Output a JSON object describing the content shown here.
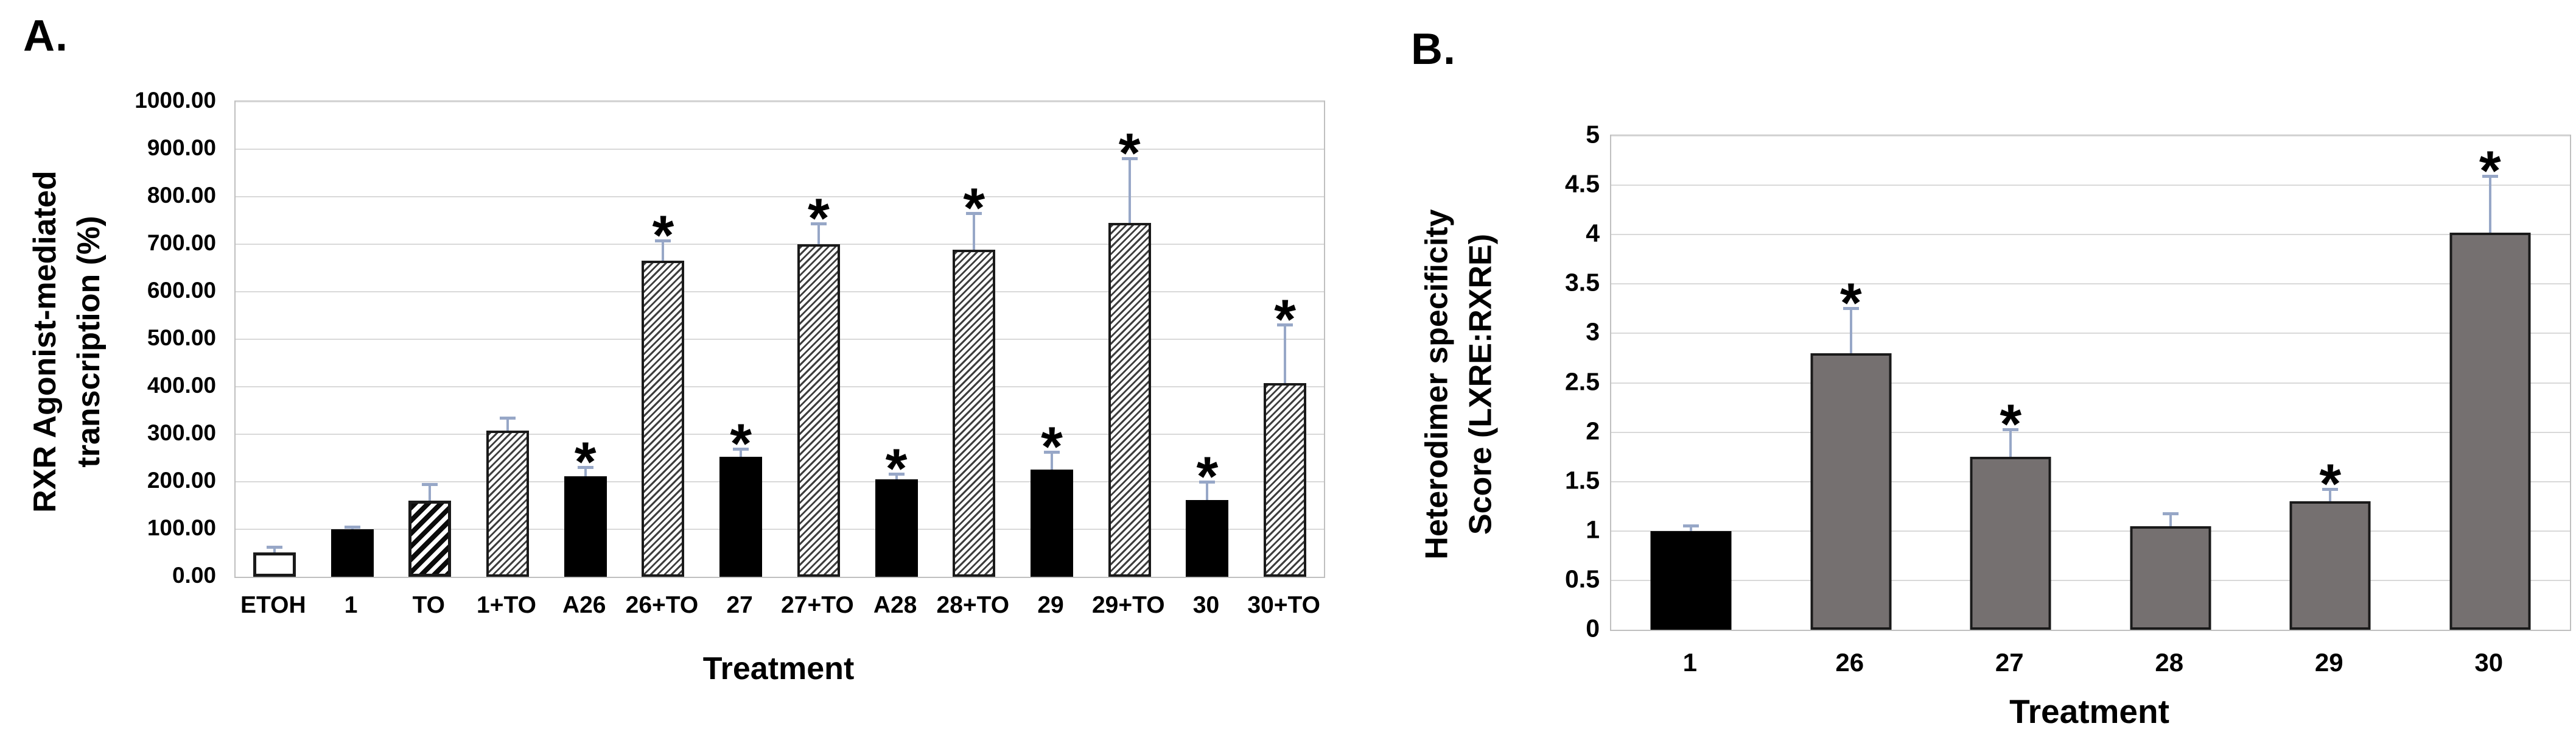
{
  "figure": {
    "background": "#ffffff",
    "panels": [
      {
        "id": "A",
        "label": "A.",
        "y_axis_title_lines": [
          "RXR Agonist-mediated",
          "transcription (%)"
        ],
        "x_axis_title": "Treatment"
      },
      {
        "id": "B",
        "label": "B.",
        "y_axis_title_lines": [
          "Heterodimer specificity",
          "Score (LXRE:RXRE)"
        ],
        "x_axis_title": "Treatment"
      }
    ]
  },
  "chart_data": [
    {
      "type": "bar",
      "panel": "A",
      "title": "",
      "xlabel": "Treatment",
      "ylabel": "RXR Agonist-mediated transcription (%)",
      "ylim": [
        0,
        1000
      ],
      "ytick_interval": 100,
      "ytick_labels": [
        "0.00",
        "100.00",
        "200.00",
        "300.00",
        "400.00",
        "500.00",
        "600.00",
        "700.00",
        "800.00",
        "900.00",
        "1000.00"
      ],
      "grid": true,
      "legend": "none",
      "categories": [
        "ETOH",
        "1",
        "TO",
        "1+TO",
        "A26",
        "26+TO",
        "27",
        "27+TO",
        "A28",
        "28+TO",
        "29",
        "29+TO",
        "30",
        "30+TO"
      ],
      "values": [
        51,
        100,
        160,
        308,
        212,
        665,
        252,
        700,
        205,
        688,
        226,
        745,
        162,
        408
      ],
      "errors_up": [
        11,
        4,
        34,
        25,
        17,
        42,
        16,
        42,
        10,
        76,
        36,
        135,
        37,
        122
      ],
      "significant": [
        false,
        false,
        false,
        false,
        true,
        true,
        true,
        true,
        true,
        true,
        true,
        true,
        true,
        true
      ],
      "bar_styles": [
        "white",
        "black",
        "wide-hatch",
        "fine-hatch",
        "black",
        "fine-hatch",
        "black",
        "fine-hatch",
        "black",
        "fine-hatch",
        "black",
        "fine-hatch",
        "black",
        "fine-hatch"
      ]
    },
    {
      "type": "bar",
      "panel": "B",
      "title": "",
      "xlabel": "Treatment",
      "ylabel": "Heterodimer specificity Score (LXRE:RXRE)",
      "ylim": [
        0,
        5
      ],
      "ytick_interval": 0.5,
      "ytick_labels": [
        "0",
        "0.5",
        "1",
        "1.5",
        "2",
        "2.5",
        "3",
        "3.5",
        "4",
        "4.5",
        "5"
      ],
      "grid": true,
      "legend": "none",
      "categories": [
        "1",
        "26",
        "27",
        "28",
        "29",
        "30"
      ],
      "values": [
        1.0,
        2.8,
        1.75,
        1.05,
        1.3,
        4.02
      ],
      "errors_up": [
        0.05,
        0.45,
        0.27,
        0.12,
        0.12,
        0.57
      ],
      "significant": [
        false,
        true,
        true,
        false,
        true,
        true
      ],
      "bar_styles": [
        "black",
        "gray",
        "gray",
        "gray",
        "gray",
        "gray"
      ]
    }
  ],
  "styles": {
    "bar_black": "#000000",
    "bar_white": "#ffffff",
    "bar_gray": "#757070",
    "bar_border": "#1a1a1a",
    "error_bar": "#97A7C7",
    "gridline": "#D9D9D9",
    "plot_border": "#BFBFBF",
    "text": "#000000",
    "significance_marker": "*"
  }
}
